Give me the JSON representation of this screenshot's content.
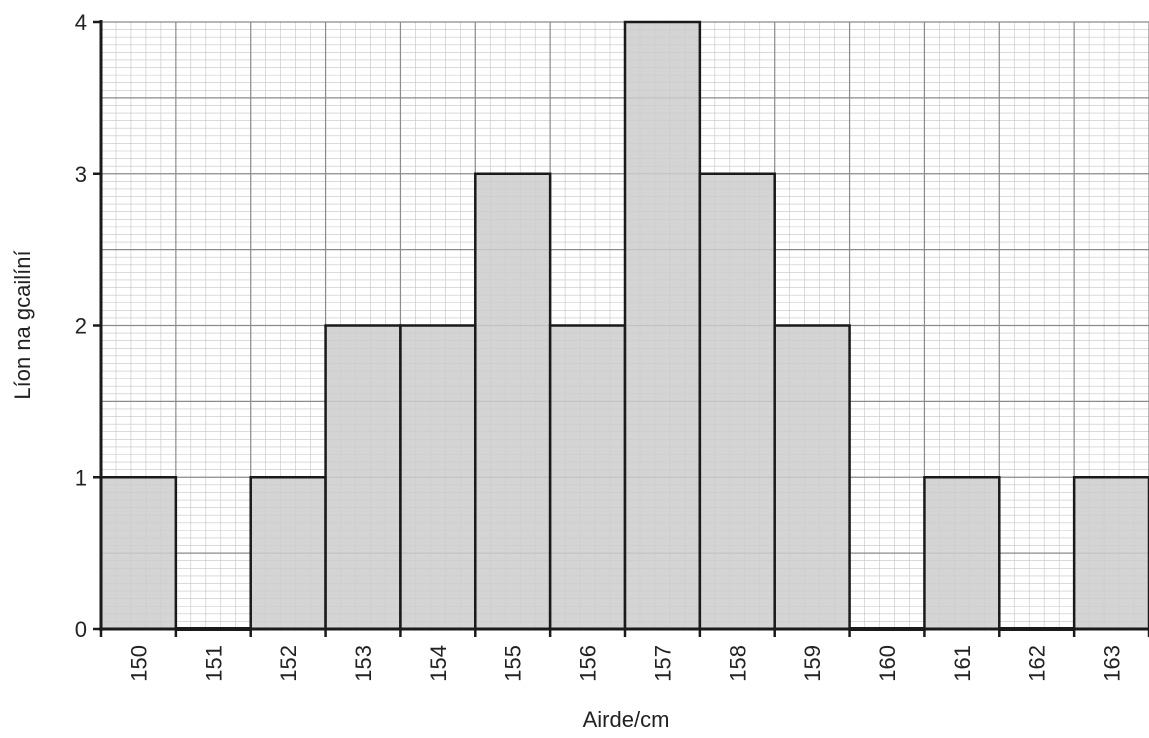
{
  "chart_data": {
    "type": "bar",
    "title": "",
    "xlabel": "Airde/cm",
    "ylabel": "Líon na gcailíní",
    "categories": [
      "150",
      "151",
      "152",
      "153",
      "154",
      "155",
      "156",
      "157",
      "158",
      "159",
      "160",
      "161",
      "162",
      "163"
    ],
    "values": [
      1,
      0,
      1,
      2,
      2,
      3,
      2,
      4,
      3,
      2,
      0,
      1,
      0,
      1
    ],
    "ylim": [
      0,
      4
    ],
    "yticks": [
      "0",
      "1",
      "2",
      "3",
      "4"
    ],
    "grid": true,
    "bar_color": "#cccccc",
    "edge_color": "#1a1a1a"
  }
}
